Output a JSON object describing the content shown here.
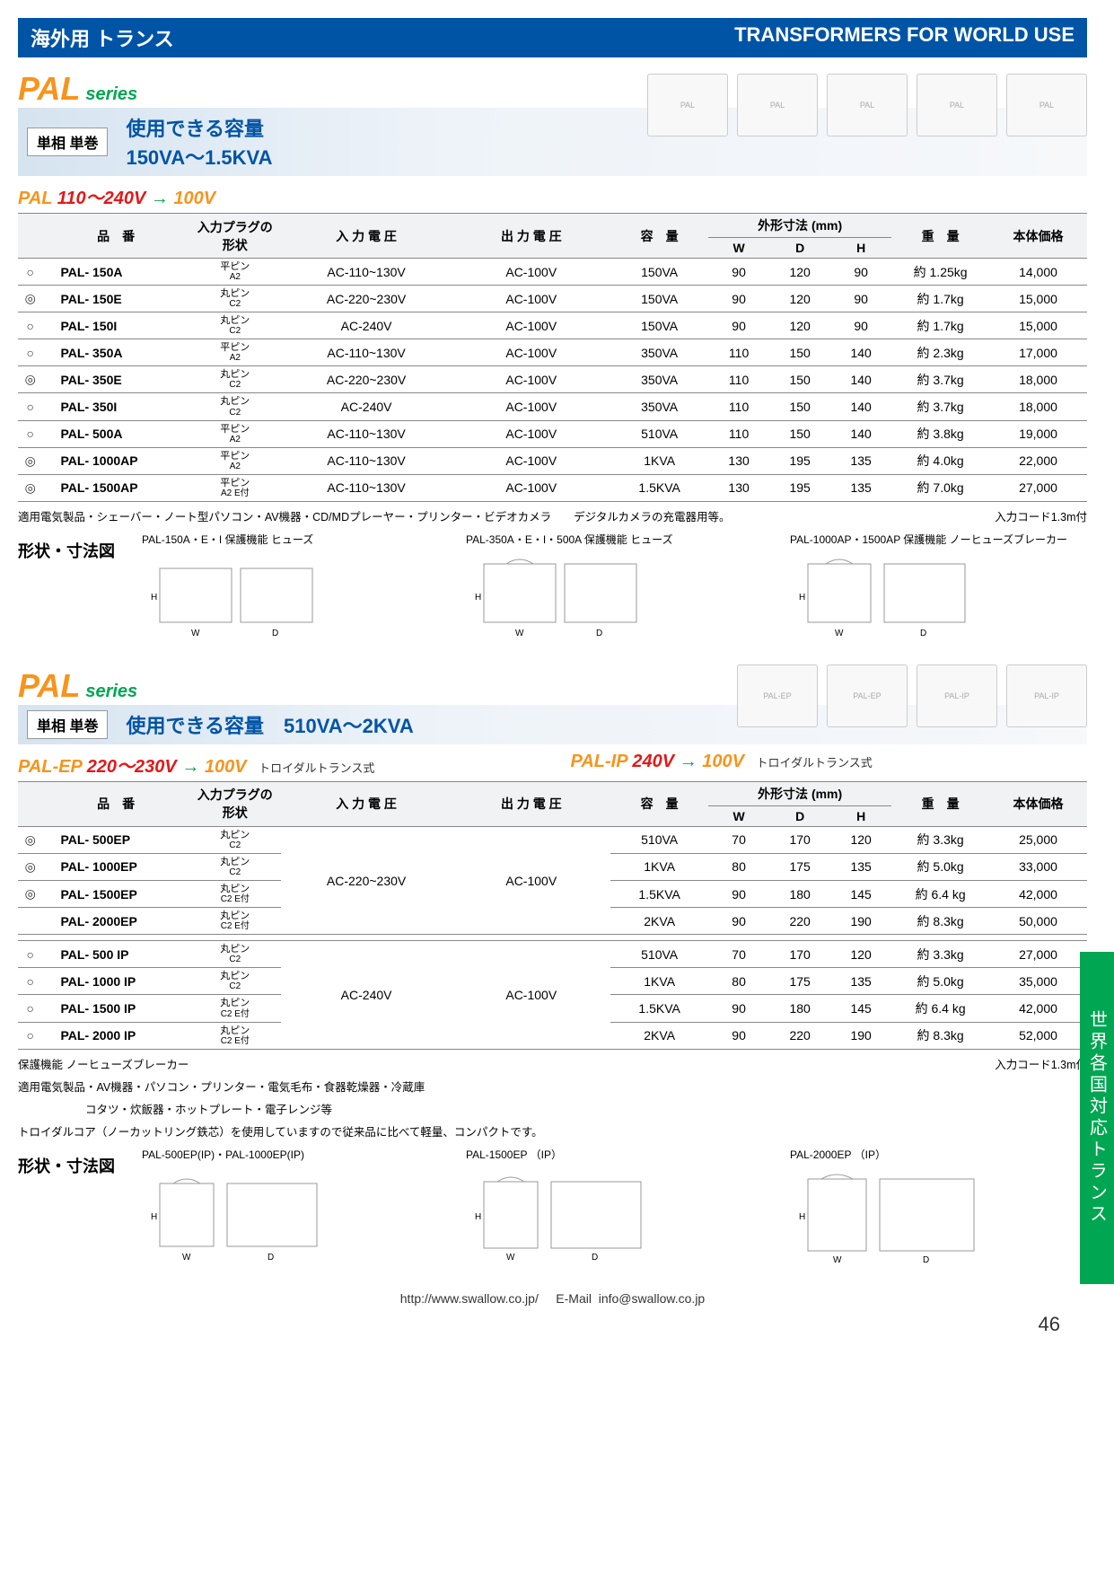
{
  "banner": {
    "left": "海外用 トランス",
    "right": "TRANSFORMERS FOR WORLD USE"
  },
  "side_tab": "世界各国対応トランス",
  "series_title": {
    "main": "PAL",
    "sub": "series"
  },
  "pal1": {
    "config": "単相 単巻",
    "capacity_label": "使用できる容量",
    "capacity_value": "150VA～1.5KVA",
    "voltage": {
      "brand": "PAL",
      "in": "110～240V",
      "arrow": "→",
      "out": "100V"
    },
    "headers": {
      "model": "品　番",
      "plug": "入力プラグの形状",
      "vin": "入 力 電 圧",
      "vout": "出 力 電 圧",
      "cap": "容　量",
      "dim": "外形寸法 (mm)",
      "w": "W",
      "d": "D",
      "h": "H",
      "weight": "重　量",
      "price": "本体価格"
    },
    "rows": [
      {
        "mark": "○",
        "model": "PAL- 150A",
        "plug": "平ピン",
        "plugsub": "A2",
        "vin": "AC-110~130V",
        "vout": "AC-100V",
        "cap": "150VA",
        "w": "90",
        "d": "120",
        "h": "90",
        "weight": "約 1.25kg",
        "price": "14,000"
      },
      {
        "mark": "◎",
        "model": "PAL- 150E",
        "plug": "丸ピン",
        "plugsub": "C2",
        "vin": "AC-220~230V",
        "vout": "AC-100V",
        "cap": "150VA",
        "w": "90",
        "d": "120",
        "h": "90",
        "weight": "約 1.7kg",
        "price": "15,000"
      },
      {
        "mark": "○",
        "model": "PAL- 150I",
        "plug": "丸ピン",
        "plugsub": "C2",
        "vin": "AC-240V",
        "vout": "AC-100V",
        "cap": "150VA",
        "w": "90",
        "d": "120",
        "h": "90",
        "weight": "約 1.7kg",
        "price": "15,000"
      },
      {
        "mark": "○",
        "model": "PAL- 350A",
        "plug": "平ピン",
        "plugsub": "A2",
        "vin": "AC-110~130V",
        "vout": "AC-100V",
        "cap": "350VA",
        "w": "110",
        "d": "150",
        "h": "140",
        "weight": "約 2.3kg",
        "price": "17,000"
      },
      {
        "mark": "◎",
        "model": "PAL- 350E",
        "plug": "丸ピン",
        "plugsub": "C2",
        "vin": "AC-220~230V",
        "vout": "AC-100V",
        "cap": "350VA",
        "w": "110",
        "d": "150",
        "h": "140",
        "weight": "約 3.7kg",
        "price": "18,000"
      },
      {
        "mark": "○",
        "model": "PAL- 350I",
        "plug": "丸ピン",
        "plugsub": "C2",
        "vin": "AC-240V",
        "vout": "AC-100V",
        "cap": "350VA",
        "w": "110",
        "d": "150",
        "h": "140",
        "weight": "約 3.7kg",
        "price": "18,000"
      },
      {
        "mark": "○",
        "model": "PAL- 500A",
        "plug": "平ピン",
        "plugsub": "A2",
        "vin": "AC-110~130V",
        "vout": "AC-100V",
        "cap": "510VA",
        "w": "110",
        "d": "150",
        "h": "140",
        "weight": "約 3.8kg",
        "price": "19,000"
      },
      {
        "mark": "◎",
        "model": "PAL- 1000AP",
        "plug": "平ピン",
        "plugsub": "A2",
        "vin": "AC-110~130V",
        "vout": "AC-100V",
        "cap": "1KVA",
        "w": "130",
        "d": "195",
        "h": "135",
        "weight": "約 4.0kg",
        "price": "22,000"
      },
      {
        "mark": "◎",
        "model": "PAL- 1500AP",
        "plug": "平ピン",
        "plugsub": "A2 E付",
        "vin": "AC-110~130V",
        "vout": "AC-100V",
        "cap": "1.5KVA",
        "w": "130",
        "d": "195",
        "h": "135",
        "weight": "約 7.0kg",
        "price": "27,000"
      }
    ],
    "note_left": "適用電気製品・シェーバー・ノート型パソコン・AV機器・CD/MDプレーヤー・プリンター・ビデオカメラ　　デジタルカメラの充電器用等。",
    "note_right": "入力コード1.3m付",
    "shape_label": "形状・寸法図",
    "diagram_captions": {
      "c1": "PAL-150A・E・I 保護機能 ヒューズ",
      "c2": "PAL-350A・E・I・500A 保護機能 ヒューズ",
      "c3": "PAL-1000AP・1500AP 保護機能 ノーヒューズブレーカー"
    }
  },
  "pal2": {
    "config": "単相 単巻",
    "capacity_label": "使用できる容量　510VA～2KVA",
    "volt_ep": {
      "brand": "PAL-EP",
      "in": "220～230V",
      "arrow": "→",
      "out": "100V",
      "note": "トロイダルトランス式"
    },
    "volt_ip": {
      "brand": "PAL-IP",
      "in": "240V",
      "arrow": "→",
      "out": "100V",
      "note": "トロイダルトランス式"
    },
    "headers": {
      "model": "品　番",
      "plug": "入力プラグの形状",
      "vin": "入 力 電 圧",
      "vout": "出 力 電 圧",
      "cap": "容　量",
      "dim": "外形寸法 (mm)",
      "w": "W",
      "d": "D",
      "h": "H",
      "weight": "重　量",
      "price": "本体価格"
    },
    "group_ep": {
      "vin": "AC-220~230V",
      "vout": "AC-100V",
      "rows": [
        {
          "mark": "◎",
          "model": "PAL- 500EP",
          "plug": "丸ピン",
          "plugsub": "C2",
          "cap": "510VA",
          "w": "70",
          "d": "170",
          "h": "120",
          "weight": "約 3.3kg",
          "price": "25,000"
        },
        {
          "mark": "◎",
          "model": "PAL- 1000EP",
          "plug": "丸ピン",
          "plugsub": "C2",
          "cap": "1KVA",
          "w": "80",
          "d": "175",
          "h": "135",
          "weight": "約 5.0kg",
          "price": "33,000"
        },
        {
          "mark": "◎",
          "model": "PAL- 1500EP",
          "plug": "丸ピン",
          "plugsub": "C2 E付",
          "cap": "1.5KVA",
          "w": "90",
          "d": "180",
          "h": "145",
          "weight": "約 6.4 kg",
          "price": "42,000"
        },
        {
          "mark": "",
          "model": "PAL- 2000EP",
          "plug": "丸ピン",
          "plugsub": "C2 E付",
          "cap": "2KVA",
          "w": "90",
          "d": "220",
          "h": "190",
          "weight": "約 8.3kg",
          "price": "50,000"
        }
      ]
    },
    "group_ip": {
      "vin": "AC-240V",
      "vout": "AC-100V",
      "rows": [
        {
          "mark": "○",
          "model": "PAL- 500 IP",
          "plug": "丸ピン",
          "plugsub": "C2",
          "cap": "510VA",
          "w": "70",
          "d": "170",
          "h": "120",
          "weight": "約 3.3kg",
          "price": "27,000"
        },
        {
          "mark": "○",
          "model": "PAL- 1000 IP",
          "plug": "丸ピン",
          "plugsub": "C2",
          "cap": "1KVA",
          "w": "80",
          "d": "175",
          "h": "135",
          "weight": "約 5.0kg",
          "price": "35,000"
        },
        {
          "mark": "○",
          "model": "PAL- 1500 IP",
          "plug": "丸ピン",
          "plugsub": "C2 E付",
          "cap": "1.5KVA",
          "w": "90",
          "d": "180",
          "h": "145",
          "weight": "約 6.4 kg",
          "price": "42,000"
        },
        {
          "mark": "○",
          "model": "PAL- 2000 IP",
          "plug": "丸ピン",
          "plugsub": "C2 E付",
          "cap": "2KVA",
          "w": "90",
          "d": "220",
          "h": "190",
          "weight": "約 8.3kg",
          "price": "52,000"
        }
      ]
    },
    "note1": "保護機能 ノーヒューズブレーカー",
    "note_right": "入力コード1.3m付",
    "note2": "適用電気製品・AV機器・パソコン・プリンター・電気毛布・食器乾燥器・冷蔵庫",
    "note3": "　　　　　　コタツ・炊飯器・ホットプレート・電子レンジ等",
    "note4": "トロイダルコア（ノーカットリング鉄芯）を使用していますので従来品に比べて軽量、コンパクトです。",
    "shape_label": "形状・寸法図",
    "diagram_captions": {
      "c1": "PAL-500EP(IP)・PAL-1000EP(IP)",
      "c2": "PAL-1500EP （IP）",
      "c3": "PAL-2000EP （IP）"
    }
  },
  "footer": {
    "url": "http://www.swallow.co.jp/",
    "email_label": "E-Mail",
    "email": "info@swallow.co.jp"
  },
  "page_num": "46",
  "colors": {
    "banner_bg": "#0054a6",
    "accent_orange": "#f7941d",
    "accent_green": "#00a651",
    "accent_red": "#e31818",
    "border": "#888888"
  }
}
